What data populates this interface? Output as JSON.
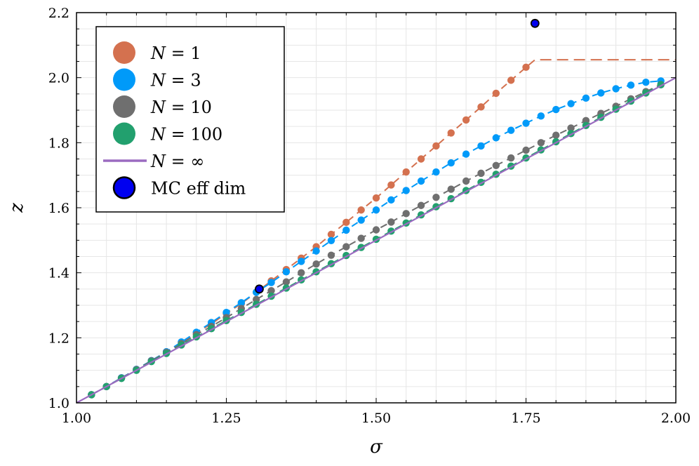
{
  "chart_data": {
    "type": "scatter",
    "title": "",
    "xlabel": "σ",
    "ylabel": "z",
    "xlim": [
      1.0,
      2.0
    ],
    "ylim": [
      1.0,
      2.2
    ],
    "xticks": [
      1.0,
      1.25,
      1.5,
      1.75,
      2.0
    ],
    "xtick_labels": [
      "1.00",
      "1.25",
      "1.50",
      "1.75",
      "2.00"
    ],
    "yticks": [
      1.0,
      1.2,
      1.4,
      1.6,
      1.8,
      2.0,
      2.2
    ],
    "ytick_labels": [
      "1.0",
      "1.2",
      "1.4",
      "1.6",
      "1.8",
      "2.0",
      "2.2"
    ],
    "grid": true,
    "legend_position": "top-left",
    "series": [
      {
        "name": "N = 1",
        "legend_var": "N",
        "legend_val": "= 1",
        "color": "#D4714F",
        "style": "markers+dashed",
        "x": [
          1.025,
          1.05,
          1.075,
          1.1,
          1.125,
          1.15,
          1.175,
          1.2,
          1.225,
          1.25,
          1.275,
          1.3,
          1.325,
          1.35,
          1.375,
          1.4,
          1.425,
          1.45,
          1.475,
          1.5,
          1.525,
          1.55,
          1.575,
          1.6,
          1.625,
          1.65,
          1.675,
          1.7,
          1.725,
          1.75
        ],
        "y": [
          1.025,
          1.05,
          1.077,
          1.103,
          1.13,
          1.157,
          1.185,
          1.215,
          1.243,
          1.275,
          1.305,
          1.34,
          1.375,
          1.41,
          1.445,
          1.48,
          1.518,
          1.555,
          1.593,
          1.63,
          1.67,
          1.71,
          1.75,
          1.79,
          1.83,
          1.87,
          1.91,
          1.952,
          1.992,
          2.032
        ],
        "extension": {
          "x": [
            1.75,
            1.765,
            2.0
          ],
          "y": [
            2.032,
            2.055,
            2.055
          ]
        }
      },
      {
        "name": "N = 3",
        "legend_var": "N",
        "legend_val": "= 3",
        "color": "#009AF9",
        "style": "markers+dashed",
        "x": [
          1.025,
          1.05,
          1.075,
          1.1,
          1.125,
          1.15,
          1.175,
          1.2,
          1.225,
          1.25,
          1.275,
          1.3,
          1.325,
          1.35,
          1.375,
          1.4,
          1.425,
          1.45,
          1.475,
          1.5,
          1.525,
          1.55,
          1.575,
          1.6,
          1.625,
          1.65,
          1.675,
          1.7,
          1.725,
          1.75,
          1.775,
          1.8,
          1.825,
          1.85,
          1.875,
          1.9,
          1.925,
          1.95,
          1.975
        ],
        "y": [
          1.025,
          1.05,
          1.077,
          1.103,
          1.13,
          1.157,
          1.187,
          1.217,
          1.247,
          1.278,
          1.308,
          1.34,
          1.37,
          1.403,
          1.435,
          1.467,
          1.499,
          1.531,
          1.562,
          1.593,
          1.624,
          1.653,
          1.682,
          1.71,
          1.738,
          1.765,
          1.79,
          1.815,
          1.838,
          1.86,
          1.882,
          1.902,
          1.92,
          1.937,
          1.953,
          1.966,
          1.977,
          1.986,
          1.99
        ]
      },
      {
        "name": "N = 10",
        "legend_var": "N",
        "legend_val": "= 10",
        "color": "#6F6F6F",
        "style": "markers+dashed",
        "x": [
          1.025,
          1.05,
          1.075,
          1.1,
          1.125,
          1.15,
          1.175,
          1.2,
          1.225,
          1.25,
          1.275,
          1.3,
          1.325,
          1.35,
          1.375,
          1.4,
          1.425,
          1.45,
          1.475,
          1.5,
          1.525,
          1.55,
          1.575,
          1.6,
          1.625,
          1.65,
          1.675,
          1.7,
          1.725,
          1.75,
          1.775,
          1.8,
          1.825,
          1.85,
          1.875,
          1.9,
          1.925,
          1.95,
          1.975
        ],
        "y": [
          1.025,
          1.05,
          1.076,
          1.102,
          1.129,
          1.155,
          1.182,
          1.21,
          1.235,
          1.262,
          1.29,
          1.318,
          1.345,
          1.372,
          1.4,
          1.427,
          1.454,
          1.48,
          1.506,
          1.532,
          1.556,
          1.582,
          1.607,
          1.632,
          1.657,
          1.682,
          1.706,
          1.73,
          1.753,
          1.777,
          1.8,
          1.823,
          1.845,
          1.868,
          1.89,
          1.912,
          1.935,
          1.957,
          1.979
        ]
      },
      {
        "name": "N = 100",
        "legend_var": "N",
        "legend_val": "= 100",
        "color": "#22A06E",
        "style": "markers+dashed",
        "x": [
          1.025,
          1.05,
          1.075,
          1.1,
          1.125,
          1.15,
          1.175,
          1.2,
          1.225,
          1.25,
          1.275,
          1.3,
          1.325,
          1.35,
          1.375,
          1.4,
          1.425,
          1.45,
          1.475,
          1.5,
          1.525,
          1.55,
          1.575,
          1.6,
          1.625,
          1.65,
          1.675,
          1.7,
          1.725,
          1.75,
          1.775,
          1.8,
          1.825,
          1.85,
          1.875,
          1.9,
          1.925,
          1.95,
          1.975
        ],
        "y": [
          1.025,
          1.05,
          1.075,
          1.1,
          1.127,
          1.152,
          1.178,
          1.203,
          1.228,
          1.253,
          1.278,
          1.303,
          1.328,
          1.353,
          1.378,
          1.403,
          1.428,
          1.453,
          1.478,
          1.503,
          1.528,
          1.553,
          1.578,
          1.603,
          1.628,
          1.653,
          1.678,
          1.703,
          1.728,
          1.753,
          1.778,
          1.803,
          1.828,
          1.853,
          1.878,
          1.903,
          1.928,
          1.953,
          1.978
        ]
      },
      {
        "name": "N = ∞",
        "legend_var": "N",
        "legend_val": "= ∞",
        "color": "#9B6BC0",
        "style": "line",
        "x": [
          1.0,
          2.0
        ],
        "y": [
          1.0,
          2.0
        ]
      },
      {
        "name": "MC eff dim",
        "legend_var": "",
        "legend_val": "MC eff dim",
        "color": "#0000F0",
        "style": "markers",
        "x": [
          1.305,
          1.765
        ],
        "y": [
          1.35,
          2.167
        ]
      }
    ]
  }
}
